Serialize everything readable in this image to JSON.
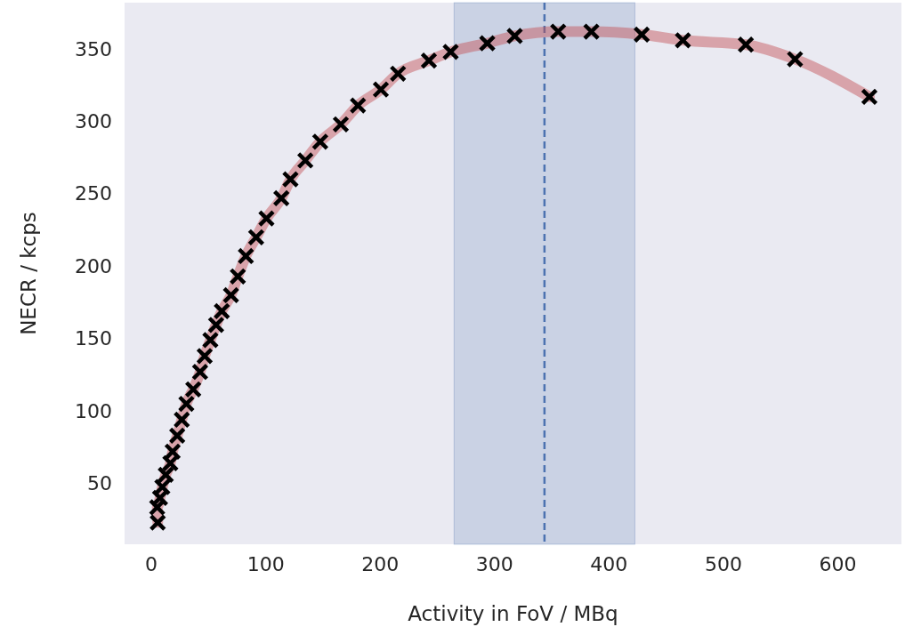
{
  "chart_data": {
    "type": "scatter",
    "xlabel": "Activity in FoV / MBq",
    "ylabel": "NECR / kcps",
    "x": [
      6,
      5.5,
      8,
      10,
      13,
      17,
      19,
      23,
      27,
      31,
      37,
      43,
      47,
      52,
      57,
      62,
      70,
      76,
      83,
      92,
      101,
      114,
      122,
      135,
      148,
      166,
      181,
      201,
      216,
      243,
      262,
      294,
      318,
      356,
      385,
      429,
      465,
      520,
      563,
      628
    ],
    "series": [
      {
        "type": "line",
        "color": "#c44e52",
        "values": [
          23,
          33.5,
          40,
          47.6,
          56,
          64,
          72,
          83,
          94,
          105,
          115,
          127,
          138,
          149,
          159.5,
          169,
          180,
          193,
          207,
          220,
          233,
          247,
          260,
          273,
          286,
          298,
          311,
          322,
          333,
          342,
          348,
          354,
          359,
          362,
          362,
          360,
          356,
          353,
          343,
          317
        ]
      },
      {
        "color": "#000000",
        "marker": "cross",
        "values": [
          23,
          33.5,
          40,
          47.6,
          56,
          64,
          72,
          83,
          94,
          105,
          115,
          127,
          138,
          149,
          159.5,
          169,
          180,
          193,
          207,
          220,
          233,
          247,
          260,
          273,
          286,
          298,
          311,
          322,
          333,
          342,
          348,
          354,
          359,
          362,
          362,
          360,
          356,
          353,
          343,
          317
        ]
      }
    ],
    "xlim": [
      -23,
      656
    ],
    "xticks": [
      0,
      100,
      200,
      300,
      400,
      500,
      600
    ],
    "ylim": [
      8,
      382
    ],
    "yticks": [
      50,
      100,
      150,
      200,
      250,
      300,
      350
    ],
    "grid": false,
    "bands": [
      {
        "axis": "x",
        "from": 265,
        "to": 423,
        "color": "#4c72b0"
      }
    ],
    "ref_lines": [
      {
        "axis": "x",
        "value": 344,
        "color": "#4c72b0",
        "line_style": "dashed"
      }
    ]
  }
}
